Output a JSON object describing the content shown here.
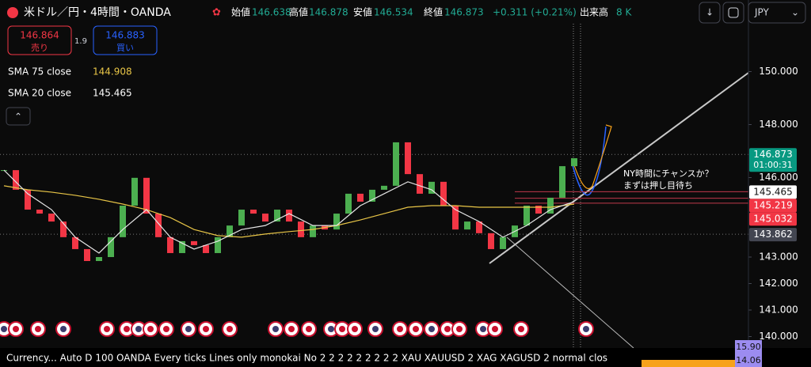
{
  "header": {
    "symbol": "米ドル／円・4時間・OANDA",
    "open_label": "始値",
    "open": "146.638",
    "high_label": "高値",
    "high": "146.878",
    "low_label": "安値",
    "low": "146.534",
    "close_label": "終値",
    "close": "146.873",
    "change": "+0.311 (+0.21%)",
    "volume_label": "出来高",
    "volume": "8 K",
    "currency": "JPY"
  },
  "trade": {
    "sell_price": "146.864",
    "sell_label": "売り",
    "spread": "1.9",
    "buy_price": "146.883",
    "buy_label": "買い"
  },
  "annotation": [
    "NY時間にチャンスか？",
    "まずは押し目待ち"
  ],
  "status_bar": "Currency... Auto D 100 OANDA Every ticks Lines only monokai No 2 2 2 2 2 2 2 2 2 XAU XAUUSD 2 XAG XAGUSD 2 normal clos",
  "side_badges": [
    "15.90",
    "14.06"
  ],
  "chart_data": {
    "type": "candlestick",
    "ylim": [
      139.567,
      152.701
    ],
    "yticks": [
      {
        "value": 140,
        "label": "140.000"
      },
      {
        "value": 141,
        "label": "141.000"
      },
      {
        "value": 142,
        "label": "142.000"
      },
      {
        "value": 143,
        "label": "143.000"
      },
      {
        "value": 146,
        "label": "146.000"
      },
      {
        "value": 148,
        "label": "148.000"
      },
      {
        "value": 150,
        "label": "150.000"
      }
    ],
    "candles": {
      "color_up": "#4caf50",
      "color_down": "#f23645",
      "values": [
        146.28,
        145.54,
        144.79,
        144.64,
        144.34,
        143.75,
        143.3,
        142.85,
        143.0,
        143.75,
        144.94,
        145.99,
        144.64,
        143.75,
        143.15,
        143.6,
        143.45,
        143.15,
        143.75,
        144.19,
        144.79,
        144.64,
        144.34,
        144.79,
        144.34,
        143.75,
        144.19,
        144.04,
        144.64,
        145.39,
        145.09,
        145.54,
        145.69,
        147.33,
        146.13,
        145.39,
        145.84,
        144.94,
        144.04,
        144.34,
        143.9,
        143.3,
        143.75,
        144.19,
        144.94,
        144.64,
        145.24,
        146.43,
        146.73
      ]
    },
    "series": [
      {
        "name": "SMA 75 close",
        "last": 144.908,
        "color": "#e8c547",
        "x": [
          0,
          2,
          4,
          6,
          8,
          10,
          12,
          14,
          16,
          18,
          20,
          22,
          24,
          26,
          28,
          30,
          32,
          34,
          36,
          38,
          40,
          42,
          44,
          46,
          48
        ],
        "values": [
          145.69,
          145.54,
          145.45,
          145.33,
          145.18,
          145.0,
          144.79,
          144.49,
          144.04,
          143.81,
          143.75,
          143.87,
          143.96,
          144.04,
          144.19,
          144.4,
          144.64,
          144.88,
          144.94,
          144.94,
          144.88,
          144.88,
          144.88,
          144.88,
          145.0
        ]
      },
      {
        "name": "SMA 20 close",
        "last": 145.465,
        "color": "#e6e6e6",
        "x": [
          0,
          2,
          4,
          6,
          8,
          10,
          12,
          14,
          16,
          18,
          20,
          22,
          24,
          26,
          28,
          30,
          32,
          34,
          36,
          38,
          40,
          42,
          44,
          46,
          48
        ],
        "values": [
          146.28,
          145.39,
          144.79,
          143.75,
          143.15,
          144.04,
          144.79,
          143.75,
          143.3,
          143.6,
          144.04,
          144.19,
          144.64,
          144.19,
          144.19,
          144.94,
          145.39,
          145.84,
          145.54,
          144.79,
          144.34,
          143.75,
          144.19,
          144.79,
          145.09
        ]
      }
    ],
    "price_badges": [
      {
        "value": 146.873,
        "time": "01:00:31",
        "color": "#089981"
      },
      {
        "value": 145.465,
        "color": "#ffffff"
      },
      {
        "value": 145.219,
        "color": "#f23645"
      },
      {
        "value": 145.032,
        "color": "#f23645"
      },
      {
        "value": 143.862,
        "color": "#434651"
      }
    ]
  }
}
